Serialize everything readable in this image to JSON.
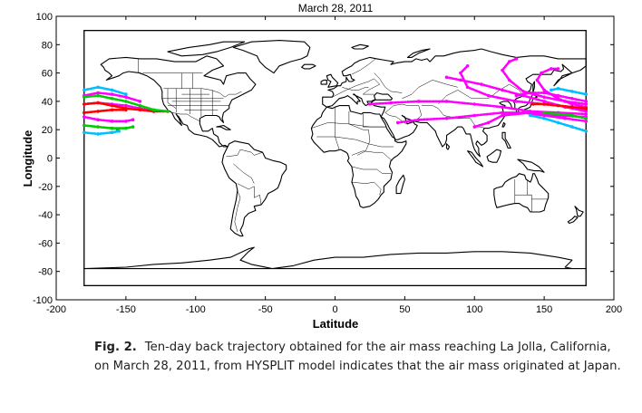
{
  "chart_data": {
    "type": "map",
    "title": "March 28, 2011",
    "xlabel": "Latitude",
    "ylabel": "Longitude",
    "xlim": [
      -200,
      200
    ],
    "ylim": [
      -100,
      100
    ],
    "xticks": [
      -200,
      -150,
      -100,
      -50,
      0,
      50,
      100,
      150,
      200
    ],
    "yticks": [
      -100,
      -80,
      -60,
      -40,
      -20,
      0,
      20,
      40,
      60,
      80,
      100
    ],
    "xtick_labels": [
      "-200",
      "-150",
      "-100",
      "-50",
      "0",
      "50",
      "100",
      "150",
      "200"
    ],
    "ytick_labels": [
      "-100",
      "-80",
      "-60",
      "-40",
      "-20",
      "0",
      "20",
      "40",
      "60",
      "80",
      "100"
    ],
    "map_frame": {
      "x": [
        -180,
        180
      ],
      "y": [
        -90,
        90
      ]
    },
    "series": [
      {
        "color": "#ff00ff",
        "tracks": [
          [
            [
              180,
              31
            ],
            [
              160,
              32
            ],
            [
              140,
              33
            ],
            [
              120,
              36
            ],
            [
              100,
              38
            ],
            [
              80,
              40
            ],
            [
              60,
              40
            ],
            [
              40,
              39
            ],
            [
              25,
              38
            ]
          ],
          [
            [
              180,
              38
            ],
            [
              165,
              40
            ],
            [
              150,
              43
            ],
            [
              135,
              47
            ],
            [
              125,
              55
            ],
            [
              120,
              62
            ],
            [
              125,
              68
            ],
            [
              130,
              70
            ]
          ],
          [
            [
              180,
              33
            ],
            [
              165,
              36
            ],
            [
              150,
              40
            ],
            [
              135,
              44
            ],
            [
              120,
              48
            ],
            [
              105,
              52
            ],
            [
              90,
              55
            ],
            [
              80,
              57
            ]
          ],
          [
            [
              180,
              26
            ],
            [
              165,
              28
            ],
            [
              150,
              30
            ],
            [
              135,
              32
            ],
            [
              120,
              32
            ],
            [
              100,
              30
            ],
            [
              80,
              28
            ],
            [
              60,
              27
            ],
            [
              45,
              25
            ]
          ],
          [
            [
              180,
              36
            ],
            [
              170,
              38
            ],
            [
              160,
              42
            ],
            [
              150,
              48
            ],
            [
              145,
              55
            ],
            [
              148,
              60
            ],
            [
              155,
              63
            ],
            [
              160,
              63
            ]
          ],
          [
            [
              180,
              40
            ],
            [
              170,
              42
            ],
            [
              160,
              44
            ],
            [
              150,
              46
            ],
            [
              140,
              46
            ],
            [
              130,
              44
            ]
          ],
          [
            [
              180,
              29
            ],
            [
              160,
              30
            ],
            [
              140,
              32
            ],
            [
              120,
              30
            ],
            [
              110,
              25
            ],
            [
              100,
              22
            ]
          ],
          [
            [
              180,
              34
            ],
            [
              170,
              36
            ],
            [
              150,
              38
            ],
            [
              130,
              40
            ],
            [
              110,
              44
            ],
            [
              95,
              50
            ],
            [
              90,
              60
            ],
            [
              95,
              65
            ]
          ],
          [
            [
              -180,
              44
            ],
            [
              -170,
              46
            ],
            [
              -160,
              45
            ],
            [
              -150,
              43
            ],
            [
              -140,
              40
            ]
          ],
          [
            [
              -180,
              29
            ],
            [
              -170,
              27
            ],
            [
              -160,
              26
            ],
            [
              -150,
              26
            ],
            [
              -145,
              27
            ]
          ],
          [
            [
              -180,
              38
            ],
            [
              -170,
              39
            ],
            [
              -160,
              38
            ],
            [
              -150,
              37
            ],
            [
              -140,
              35
            ],
            [
              -130,
              33
            ]
          ]
        ]
      },
      {
        "color": "#ff0000",
        "tracks": [
          [
            [
              180,
              35
            ],
            [
              170,
              36
            ],
            [
              160,
              37
            ],
            [
              150,
              38
            ],
            [
              142,
              38
            ]
          ],
          [
            [
              -180,
              38
            ],
            [
              -170,
              39
            ],
            [
              -160,
              37
            ],
            [
              -150,
              35
            ],
            [
              -140,
              34
            ],
            [
              -130,
              33
            ],
            [
              -120,
              33
            ]
          ],
          [
            [
              -180,
              32
            ],
            [
              -170,
              33
            ],
            [
              -160,
              34
            ],
            [
              -150,
              34
            ]
          ]
        ]
      },
      {
        "color": "#00cc00",
        "tracks": [
          [
            [
              180,
              28
            ],
            [
              170,
              30
            ],
            [
              160,
              31
            ],
            [
              150,
              32
            ]
          ],
          [
            [
              -180,
              43
            ],
            [
              -170,
              44
            ],
            [
              -160,
              42
            ],
            [
              -150,
              40
            ],
            [
              -140,
              37
            ],
            [
              -130,
              34
            ],
            [
              -120,
              33
            ]
          ],
          [
            [
              -180,
              23
            ],
            [
              -170,
              22
            ],
            [
              -160,
              21
            ],
            [
              -150,
              21
            ],
            [
              -145,
              22
            ]
          ]
        ]
      },
      {
        "color": "#00bfff",
        "tracks": [
          [
            [
              180,
              19
            ],
            [
              170,
              22
            ],
            [
              160,
              25
            ],
            [
              150,
              28
            ],
            [
              140,
              30
            ]
          ],
          [
            [
              180,
              45
            ],
            [
              170,
              47
            ],
            [
              160,
              49
            ],
            [
              155,
              48
            ]
          ],
          [
            [
              -180,
              18
            ],
            [
              -170,
              17
            ],
            [
              -160,
              18
            ],
            [
              -155,
              19
            ]
          ],
          [
            [
              -180,
              48
            ],
            [
              -170,
              50
            ],
            [
              -160,
              48
            ],
            [
              -150,
              45
            ]
          ]
        ]
      }
    ]
  },
  "caption": {
    "label": "Fig. 2.",
    "text": "Ten-day back trajectory obtained for the air mass reaching La Jolla, California, on March 28, 2011, from HYSPLIT model indicates that the air mass originated at Japan."
  }
}
